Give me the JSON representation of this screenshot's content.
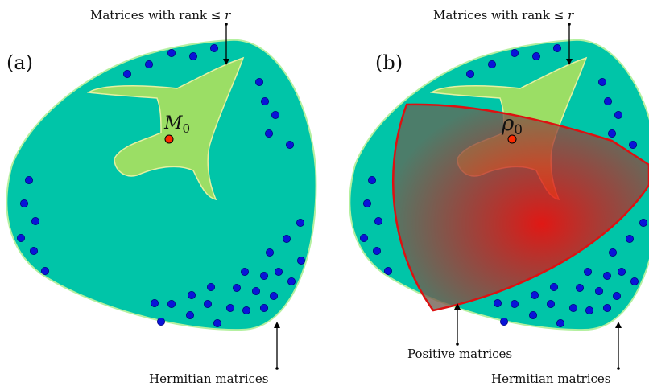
{
  "colors": {
    "hermitian_fill": "#00c5a8",
    "hermitian_stroke": "#b4f0a0",
    "rank_fill": "#a8e060",
    "rank_stroke": "#e6f0a0",
    "positive_stroke": "#dd1111",
    "positive_center": "#ff0000",
    "point_fill": "#0a14d8",
    "point_stroke": "#000080",
    "marker_fill": "#ff2a00"
  },
  "panel_a": {
    "label": "(a)",
    "rank_label": "Matrices with rank ≤ r",
    "rank_prefix": "Matrices with rank ≤",
    "rank_var": "r",
    "point_symbol": "M",
    "point_subscript": "0",
    "hermitian_label": "Hermitian matrices"
  },
  "panel_b": {
    "label": "(b)",
    "rank_label": "Matrices with rank ≤ r",
    "rank_prefix": "Matrices with rank ≤",
    "rank_var": "r",
    "point_symbol": "ρ",
    "point_subscript": "0",
    "positive_label": "Positive matrices",
    "hermitian_label": "Hermitian matrices"
  }
}
